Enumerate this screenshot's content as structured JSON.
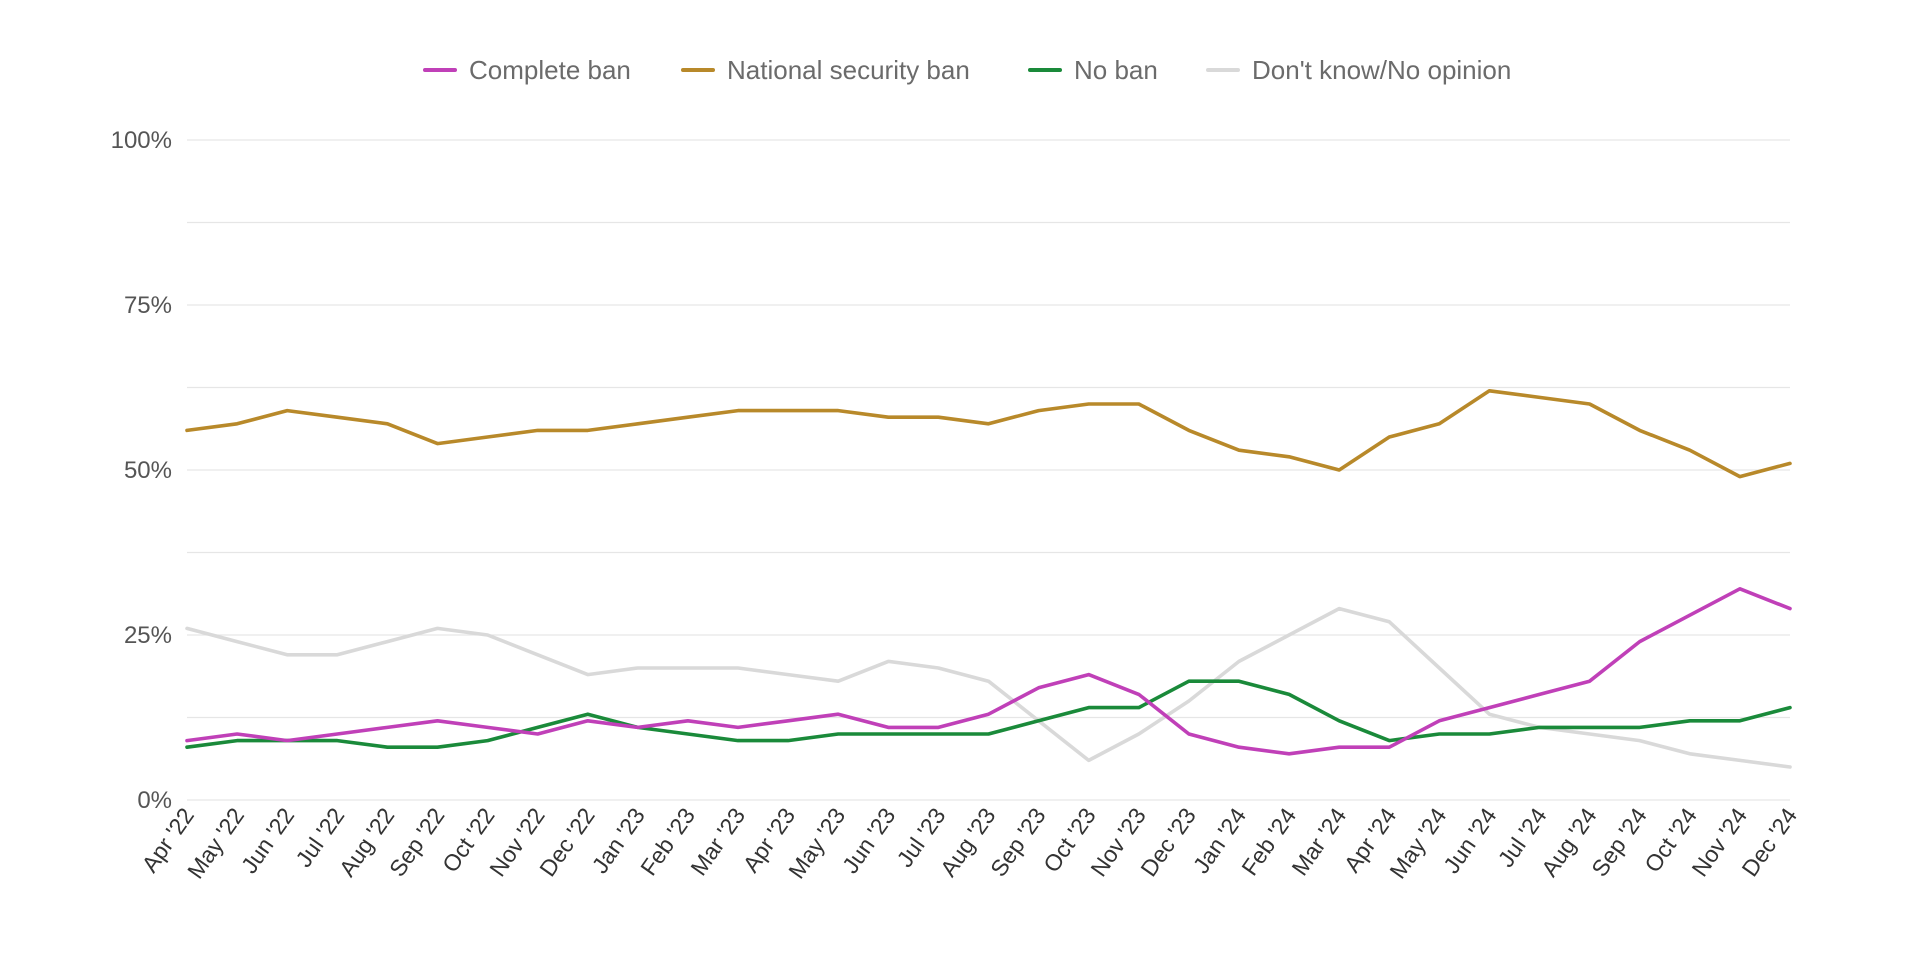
{
  "chart_data": {
    "type": "line",
    "title": "",
    "xlabel": "",
    "ylabel": "",
    "ylim": [
      0,
      100
    ],
    "y_ticks": [
      0,
      25,
      50,
      75,
      100
    ],
    "y_tick_labels": [
      "0%",
      "25%",
      "50%",
      "75%",
      "100%"
    ],
    "grid": true,
    "legend_position": "top-center",
    "categories": [
      "Apr '22",
      "May '22",
      "Jun '22",
      "Jul '22",
      "Aug '22",
      "Sep '22",
      "Oct '22",
      "Nov '22",
      "Dec '22",
      "Jan '23",
      "Feb '23",
      "Mar '23",
      "Apr '23",
      "May '23",
      "Jun '23",
      "Jul '23",
      "Aug '23",
      "Sep '23",
      "Oct '23",
      "Nov '23",
      "Dec '23",
      "Jan '24",
      "Feb '24",
      "Mar '24",
      "Apr '24",
      "May '24",
      "Jun '24",
      "Jul '24",
      "Aug '24",
      "Sep '24",
      "Oct '24",
      "Nov '24",
      "Dec '24"
    ],
    "series": [
      {
        "name": "Complete ban",
        "color": "#c040b8",
        "values": [
          9,
          10,
          9,
          10,
          11,
          12,
          11,
          10,
          12,
          11,
          12,
          11,
          12,
          13,
          11,
          11,
          13,
          17,
          19,
          16,
          10,
          8,
          7,
          8,
          8,
          12,
          14,
          16,
          18,
          24,
          28,
          32,
          29
        ]
      },
      {
        "name": "National security ban",
        "color": "#b8892a",
        "values": [
          56,
          57,
          59,
          58,
          57,
          54,
          55,
          56,
          56,
          57,
          58,
          59,
          59,
          59,
          58,
          58,
          57,
          59,
          60,
          60,
          56,
          53,
          52,
          50,
          55,
          57,
          62,
          61,
          60,
          56,
          53,
          49,
          51
        ]
      },
      {
        "name": "No ban",
        "color": "#1a8a3a",
        "values": [
          8,
          9,
          9,
          9,
          8,
          8,
          9,
          11,
          13,
          11,
          10,
          9,
          9,
          10,
          10,
          10,
          10,
          12,
          14,
          14,
          18,
          18,
          16,
          12,
          9,
          10,
          10,
          11,
          11,
          11,
          12,
          12,
          14
        ]
      },
      {
        "name": "Don't know/No opinion",
        "color": "#d9d9d9",
        "values": [
          26,
          24,
          22,
          22,
          24,
          26,
          25,
          22,
          19,
          20,
          20,
          20,
          19,
          18,
          21,
          20,
          18,
          12,
          6,
          10,
          15,
          21,
          25,
          29,
          27,
          20,
          13,
          11,
          10,
          9,
          7,
          6,
          5
        ]
      }
    ]
  }
}
